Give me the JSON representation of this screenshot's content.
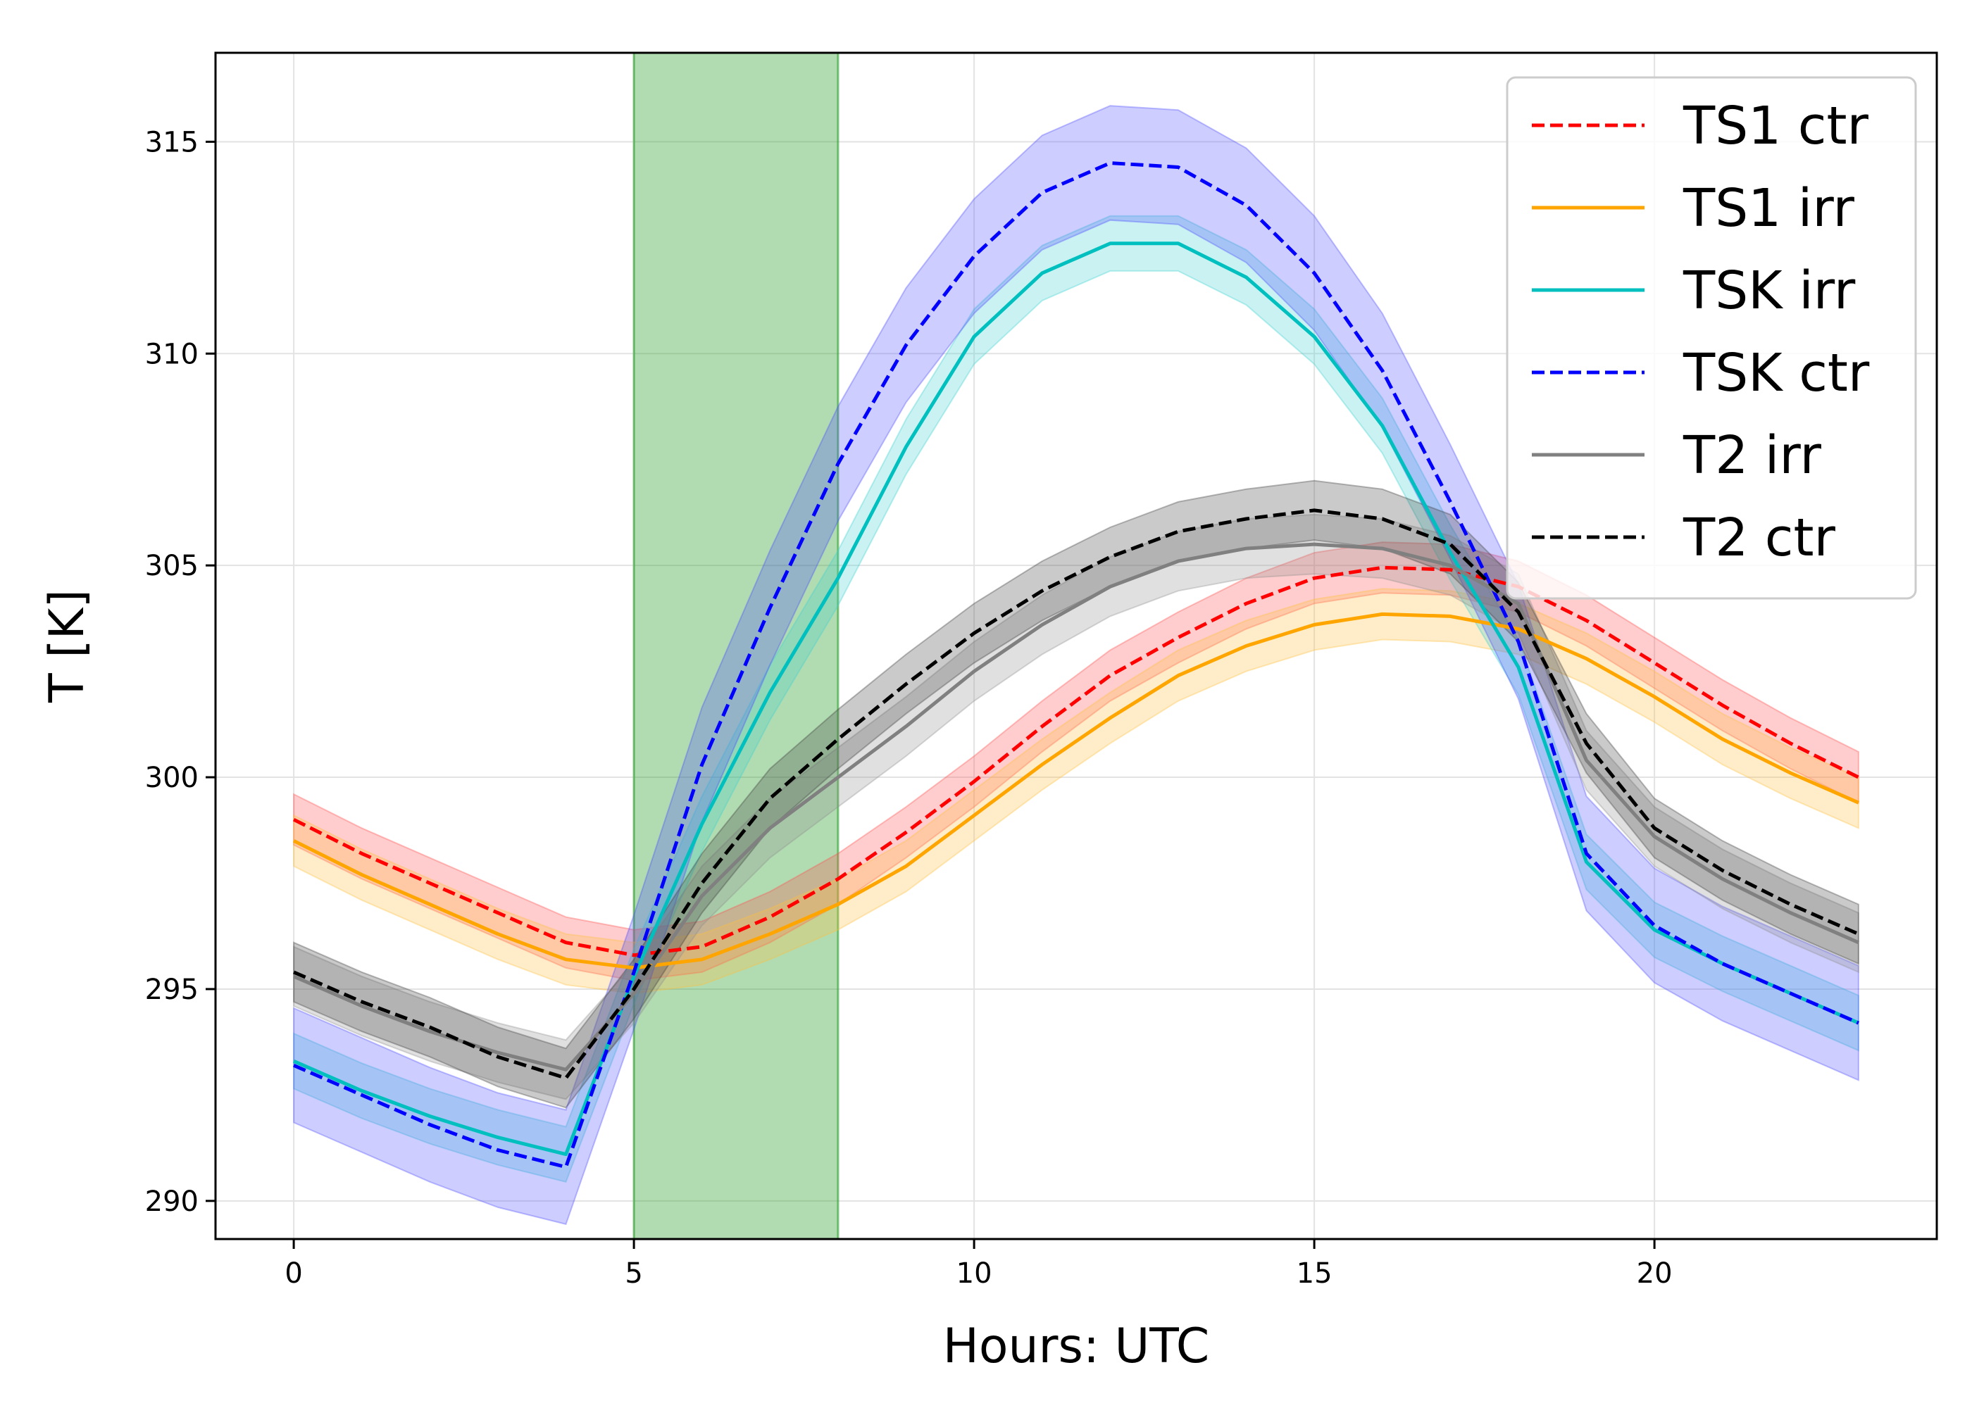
{
  "chart_data": {
    "type": "line",
    "title": "",
    "xlabel": "Hours: UTC",
    "ylabel": "T [K]",
    "xlim": [
      -1.15,
      24.15
    ],
    "ylim": [
      289.1,
      317.1
    ],
    "xticks": [
      0,
      5,
      10,
      15,
      20
    ],
    "yticks": [
      290,
      295,
      300,
      305,
      310,
      315
    ],
    "grid": true,
    "legend_position": "top-right",
    "highlight_band": {
      "x_start": 5,
      "x_end": 8,
      "color": "#2ca02c"
    },
    "x": [
      0,
      1,
      2,
      3,
      4,
      5,
      6,
      7,
      8,
      9,
      10,
      11,
      12,
      13,
      14,
      15,
      16,
      17,
      18,
      19,
      20,
      21,
      22,
      23
    ],
    "series": [
      {
        "name": "TS1 ctr",
        "color": "#ff0000",
        "dash": "dashed",
        "band_color": "#ff4d4d",
        "values": [
          299.0,
          298.2,
          297.5,
          296.8,
          296.1,
          295.8,
          296.0,
          296.7,
          297.6,
          298.7,
          299.9,
          301.2,
          302.4,
          303.3,
          304.1,
          304.7,
          304.95,
          304.9,
          304.5,
          303.7,
          302.7,
          301.7,
          300.8,
          300.0
        ],
        "band": 0.6
      },
      {
        "name": "TS1 irr",
        "color": "#ffa500",
        "dash": "solid",
        "band_color": "#ffbf40",
        "values": [
          298.5,
          297.7,
          297.0,
          296.3,
          295.7,
          295.5,
          295.7,
          296.3,
          297.0,
          297.9,
          299.1,
          300.3,
          301.4,
          302.4,
          303.1,
          303.6,
          303.85,
          303.8,
          303.5,
          302.8,
          301.9,
          300.9,
          300.1,
          299.4
        ],
        "band": 0.6
      },
      {
        "name": "TSK irr",
        "color": "#00bfbf",
        "dash": "solid",
        "band_color": "#40d0d0",
        "values": [
          293.3,
          292.6,
          292.0,
          291.5,
          291.1,
          295.3,
          298.9,
          302.0,
          304.7,
          307.8,
          310.4,
          311.9,
          312.6,
          312.6,
          311.8,
          310.4,
          308.3,
          305.3,
          302.6,
          298.0,
          296.4,
          295.6,
          294.9,
          294.2
        ],
        "band": 0.65
      },
      {
        "name": "TSK ctr",
        "color": "#0000ff",
        "dash": "dashed",
        "band_color": "#4d4dff",
        "values": [
          293.2,
          292.5,
          291.8,
          291.2,
          290.8,
          295.4,
          300.3,
          304.0,
          307.4,
          310.2,
          312.3,
          313.8,
          314.5,
          314.4,
          313.5,
          311.9,
          309.6,
          306.5,
          303.2,
          298.2,
          296.5,
          295.6,
          294.9,
          294.2
        ],
        "band": 1.35
      },
      {
        "name": "T2 irr",
        "color": "#808080",
        "dash": "solid",
        "band_color": "#909090",
        "values": [
          295.3,
          294.6,
          294.0,
          293.5,
          293.1,
          294.9,
          297.2,
          298.8,
          300.0,
          301.2,
          302.5,
          303.6,
          304.5,
          305.1,
          305.4,
          305.5,
          305.4,
          305.0,
          304.1,
          300.4,
          298.6,
          297.6,
          296.8,
          296.1
        ],
        "band": 0.7
      },
      {
        "name": "T2 ctr",
        "color": "#000000",
        "dash": "dashed",
        "band_color": "#404040",
        "values": [
          295.4,
          294.7,
          294.1,
          293.4,
          292.9,
          295.0,
          297.5,
          299.5,
          300.9,
          302.2,
          303.4,
          304.4,
          305.2,
          305.8,
          306.1,
          306.3,
          306.1,
          305.5,
          303.9,
          300.8,
          298.8,
          297.8,
          297.0,
          296.3
        ],
        "band": 0.7
      }
    ]
  }
}
